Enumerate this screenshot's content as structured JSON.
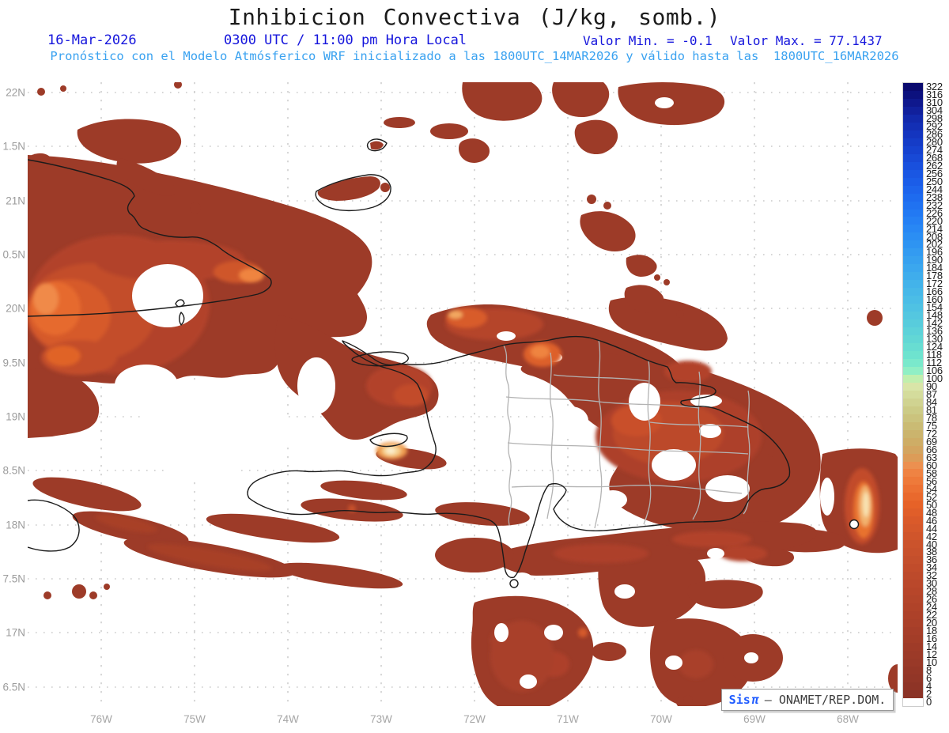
{
  "header": {
    "title": "Inhibicion Convectiva (J/kg, somb.)",
    "date": "16-Mar-2026",
    "time_label": "0300 UTC / 11:00 pm Hora Local",
    "min_label": "Valor Min. = -0.1",
    "max_label": "Valor Max. = 77.1437",
    "subtitle": "Pronóstico con el Modelo Atmósferico WRF inicializado a las 1800UTC_14MAR2026 y válido hasta las  1800UTC_16MAR2026"
  },
  "map": {
    "lat_labels": [
      "22N",
      "1.5N",
      "21N",
      "0.5N",
      "20N",
      "9.5N",
      "19N",
      "8.5N",
      "18N",
      "7.5N",
      "17N",
      "6.5N"
    ],
    "lon_labels": [
      "76W",
      "75W",
      "74W",
      "73W",
      "72W",
      "71W",
      "70W",
      "69W",
      "68W"
    ]
  },
  "colorbar": {
    "values": [
      322,
      316,
      310,
      304,
      298,
      292,
      286,
      280,
      274,
      268,
      262,
      256,
      250,
      244,
      238,
      232,
      226,
      220,
      214,
      208,
      202,
      196,
      190,
      184,
      178,
      172,
      166,
      160,
      154,
      148,
      142,
      136,
      130,
      124,
      118,
      112,
      106,
      100,
      90,
      87,
      84,
      81,
      78,
      75,
      72,
      69,
      66,
      63,
      60,
      58,
      56,
      54,
      52,
      50,
      48,
      46,
      44,
      42,
      40,
      38,
      36,
      34,
      32,
      30,
      28,
      26,
      24,
      22,
      20,
      18,
      16,
      14,
      12,
      10,
      8,
      6,
      4,
      2,
      0
    ],
    "zero_color": "#ffffff",
    "stops": [
      {
        "v": 2,
        "c": "#8b3326"
      },
      {
        "v": 12,
        "c": "#9c3a28"
      },
      {
        "v": 22,
        "c": "#ad4129"
      },
      {
        "v": 32,
        "c": "#bd4a2b"
      },
      {
        "v": 40,
        "c": "#cb532c"
      },
      {
        "v": 46,
        "c": "#da5a2a"
      },
      {
        "v": 50,
        "c": "#e66228"
      },
      {
        "v": 53,
        "c": "#eb6d2f"
      },
      {
        "v": 56,
        "c": "#ee7a3a"
      },
      {
        "v": 58,
        "c": "#ef8343"
      },
      {
        "v": 60,
        "c": "#ec9050"
      },
      {
        "v": 63,
        "c": "#dc9c58"
      },
      {
        "v": 66,
        "c": "#d3a560"
      },
      {
        "v": 70,
        "c": "#ccb068"
      },
      {
        "v": 75,
        "c": "#cabb74"
      },
      {
        "v": 80,
        "c": "#cbc883"
      },
      {
        "v": 85,
        "c": "#d1d694"
      },
      {
        "v": 90,
        "c": "#d9e5a8"
      },
      {
        "v": 100,
        "c": "#c0efae"
      },
      {
        "v": 104,
        "c": "#9defbc"
      },
      {
        "v": 106,
        "c": "#90efc5"
      },
      {
        "v": 110,
        "c": "#7eebcb"
      },
      {
        "v": 118,
        "c": "#6ee3cf"
      },
      {
        "v": 130,
        "c": "#62d7d5"
      },
      {
        "v": 142,
        "c": "#58ccdc"
      },
      {
        "v": 154,
        "c": "#4fc2e3"
      },
      {
        "v": 166,
        "c": "#47b8e8"
      },
      {
        "v": 178,
        "c": "#3fadec"
      },
      {
        "v": 190,
        "c": "#37a1ef"
      },
      {
        "v": 202,
        "c": "#2e94f2"
      },
      {
        "v": 214,
        "c": "#2887f4"
      },
      {
        "v": 226,
        "c": "#2279f3"
      },
      {
        "v": 238,
        "c": "#1e6bef"
      },
      {
        "v": 250,
        "c": "#1b5de8"
      },
      {
        "v": 262,
        "c": "#1950dd"
      },
      {
        "v": 274,
        "c": "#1642cf"
      },
      {
        "v": 286,
        "c": "#1435bf"
      },
      {
        "v": 298,
        "c": "#1229ab"
      },
      {
        "v": 306,
        "c": "#101d97"
      },
      {
        "v": 314,
        "c": "#0d1383"
      },
      {
        "v": 322,
        "c": "#0a0a6e"
      }
    ]
  },
  "badge": {
    "brand": "Sis",
    "pi": "π",
    "org": "– ONAMET/REP.DOM."
  },
  "colors": {
    "header_blue": "#1515dc",
    "subtitle_blue": "#3aa2f0",
    "axis_gray": "#9b9b9b",
    "grid_gray": "#bfbfbf",
    "coastline": "#1b1b1b",
    "province_gray": "#b3b3b3",
    "cin_dark_red": "#9d3b28",
    "cin_orange": "#e66228",
    "cin_cream": "#f8e3b2"
  }
}
